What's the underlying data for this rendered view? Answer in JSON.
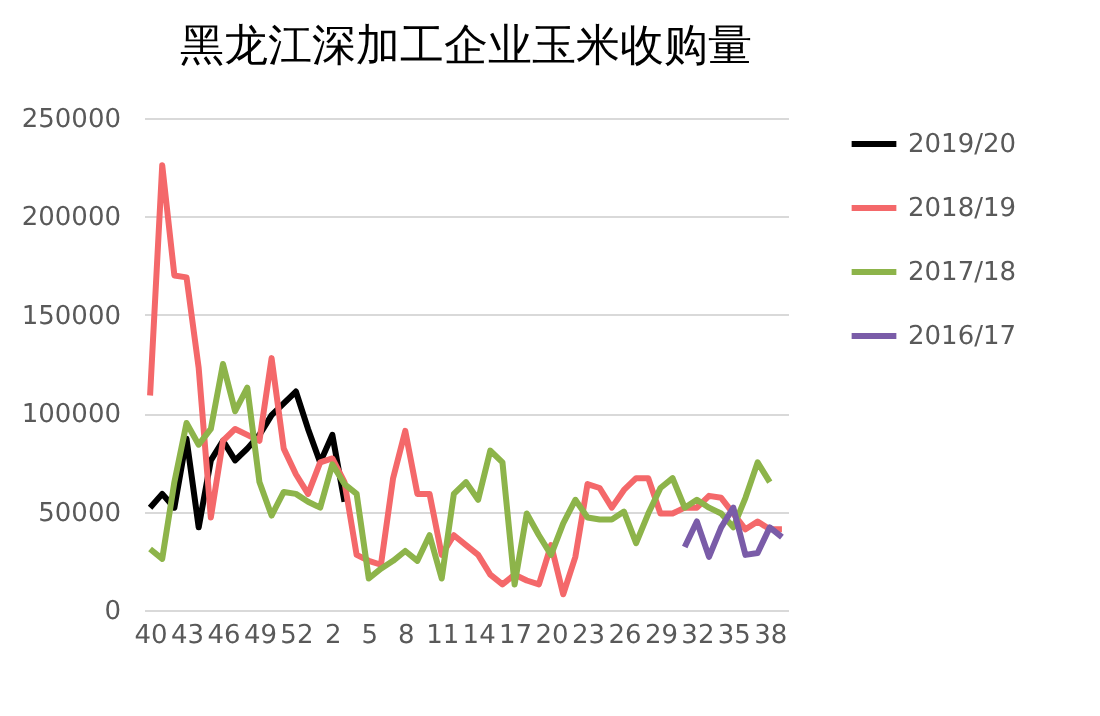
{
  "chart_data": {
    "type": "line",
    "title": "黑龙江深加工企业玉米收购量",
    "categories": [
      "40",
      null,
      null,
      "43",
      null,
      null,
      "46",
      null,
      null,
      "49",
      null,
      null,
      "52",
      null,
      null,
      "2",
      null,
      null,
      "5",
      null,
      null,
      "8",
      null,
      null,
      "11",
      null,
      null,
      "14",
      null,
      null,
      "17",
      null,
      null,
      "20",
      null,
      null,
      "23",
      null,
      null,
      "26",
      null,
      null,
      "29",
      null,
      null,
      "32",
      null,
      null,
      "35",
      null,
      null,
      "38",
      null
    ],
    "series": [
      {
        "name": "2019/20",
        "color": "#000000",
        "values": [
          52000,
          59000,
          52000,
          87000,
          42000,
          76000,
          86000,
          76000,
          82000,
          89000,
          99000,
          105000,
          111000,
          92000,
          75000,
          89000,
          55000,
          null,
          null,
          null,
          null,
          null,
          null,
          null,
          null,
          null,
          null,
          null,
          null,
          null,
          null,
          null,
          null,
          null,
          null,
          null,
          null,
          null,
          null,
          null,
          null,
          null,
          null,
          null,
          null,
          null,
          null,
          null,
          null,
          null,
          null,
          null,
          null
        ]
      },
      {
        "name": "2018/19",
        "color": "#f4686a",
        "values": [
          109000,
          226000,
          170000,
          169000,
          123000,
          47000,
          86000,
          92000,
          89000,
          86000,
          128000,
          82000,
          69000,
          59000,
          75000,
          77000,
          65000,
          28000,
          25000,
          23000,
          67000,
          91000,
          59000,
          59000,
          28000,
          38000,
          33000,
          28000,
          18000,
          13000,
          18000,
          15000,
          13000,
          33000,
          8000,
          27000,
          64000,
          62000,
          52000,
          61000,
          67000,
          67000,
          49000,
          49000,
          52000,
          52000,
          58000,
          57000,
          49000,
          41000,
          45000,
          41000,
          41000
        ]
      },
      {
        "name": "2017/18",
        "color": "#8db44a",
        "values": [
          31000,
          26000,
          65000,
          95000,
          84000,
          92000,
          125000,
          101000,
          113000,
          65000,
          48000,
          60000,
          59000,
          55000,
          52000,
          74000,
          64000,
          59000,
          16000,
          21000,
          25000,
          30000,
          25000,
          38000,
          16000,
          59000,
          65000,
          56000,
          81000,
          75000,
          13000,
          49000,
          38000,
          28000,
          44000,
          56000,
          47000,
          46000,
          46000,
          50000,
          34000,
          49000,
          62000,
          67000,
          52000,
          56000,
          52000,
          49000,
          42000,
          57000,
          75000,
          65000,
          null
        ]
      },
      {
        "name": "2016/17",
        "color": "#7a5ca8",
        "values": [
          null,
          null,
          null,
          null,
          null,
          null,
          null,
          null,
          null,
          null,
          null,
          null,
          null,
          null,
          null,
          null,
          null,
          null,
          null,
          null,
          null,
          null,
          null,
          null,
          null,
          null,
          null,
          null,
          null,
          null,
          null,
          null,
          null,
          null,
          null,
          null,
          null,
          null,
          null,
          null,
          null,
          null,
          null,
          null,
          32000,
          45000,
          27000,
          42000,
          52000,
          28000,
          29000,
          42000,
          37000
        ]
      }
    ],
    "ylim": [
      0,
      250000
    ],
    "yticks": [
      0,
      50000,
      100000,
      150000,
      200000,
      250000
    ],
    "grid": "y",
    "legend": "right",
    "marker": "none",
    "line_style": "solid"
  }
}
